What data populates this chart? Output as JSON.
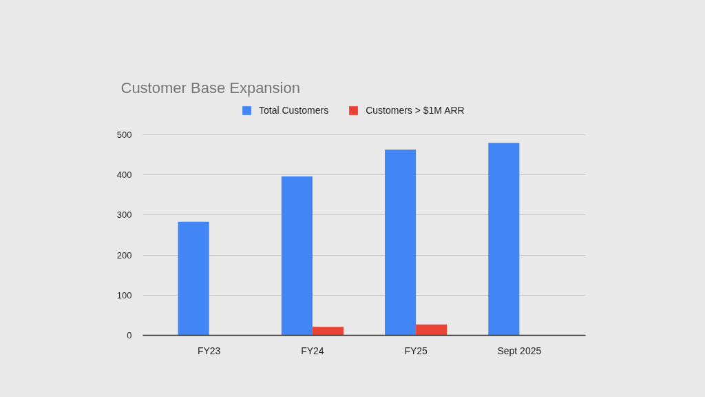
{
  "chart_data": {
    "type": "bar",
    "title": "Customer Base Expansion",
    "categories": [
      "FY23",
      "FY24",
      "FY25",
      "Sept 2025"
    ],
    "series": [
      {
        "name": "Total Customers",
        "color": "#4285f4",
        "values": [
          283,
          396,
          463,
          480
        ]
      },
      {
        "name": "Customers > $1M ARR",
        "color": "#ea4335",
        "values": [
          null,
          21,
          27,
          null
        ]
      }
    ],
    "ylim": [
      0,
      500
    ],
    "yticks": [
      0,
      100,
      200,
      300,
      400,
      500
    ],
    "grid": "y",
    "legend": "top"
  }
}
